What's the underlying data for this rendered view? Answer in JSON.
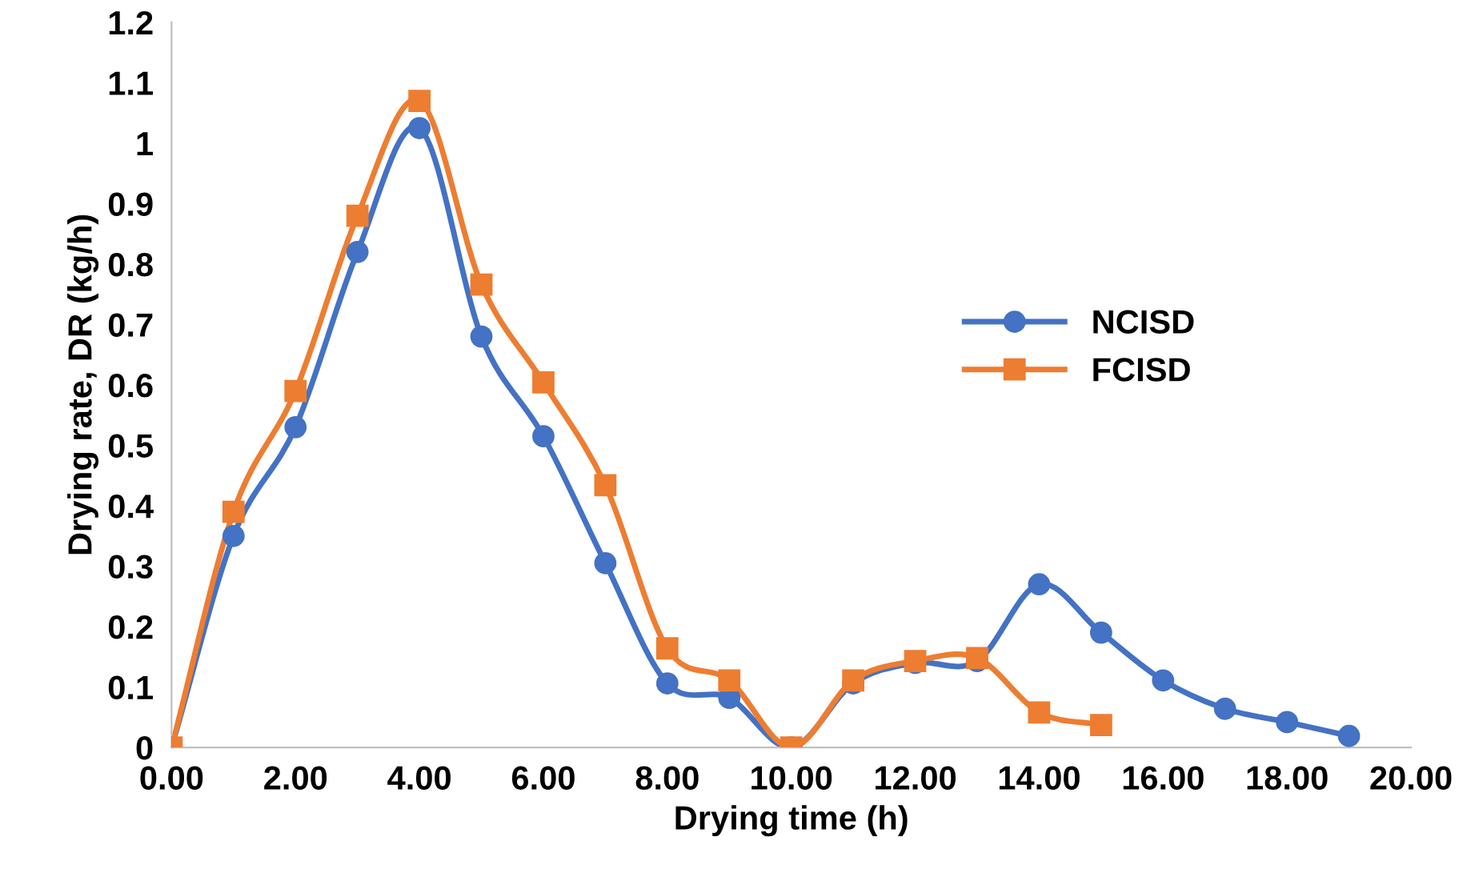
{
  "chart_data": {
    "type": "line",
    "xlabel": "Drying time (h)",
    "ylabel": "Drying rate, DR (kg/h)",
    "xlim": [
      0,
      20
    ],
    "xticks": [
      {
        "value": 0,
        "label": "0.00"
      },
      {
        "value": 2,
        "label": "2.00"
      },
      {
        "value": 4,
        "label": "4.00"
      },
      {
        "value": 6,
        "label": "6.00"
      },
      {
        "value": 8,
        "label": "8.00"
      },
      {
        "value": 10,
        "label": "10.00"
      },
      {
        "value": 12,
        "label": "12.00"
      },
      {
        "value": 14,
        "label": "14.00"
      },
      {
        "value": 16,
        "label": "16.00"
      },
      {
        "value": 18,
        "label": "18.00"
      },
      {
        "value": 20,
        "label": "20.00"
      }
    ],
    "ylim": [
      0,
      1.2
    ],
    "yticks": [
      0,
      0.1,
      0.2,
      0.3,
      0.4,
      0.5,
      0.6,
      0.7,
      0.8,
      0.9,
      1,
      1.1,
      1.2
    ],
    "grid": false,
    "legend": "right",
    "line_style": "solid",
    "series": [
      {
        "name": "NCISD",
        "color": "#4472c4",
        "marker": "circle",
        "x": [
          0,
          1,
          2,
          3,
          4,
          5,
          6,
          7,
          8,
          9,
          10,
          11,
          12,
          13,
          14,
          15,
          16,
          17,
          18,
          19
        ],
        "values": [
          0,
          0.35,
          0.53,
          0.82,
          1.025,
          0.68,
          0.515,
          0.305,
          0.106,
          0.082,
          0,
          0.106,
          0.14,
          0.143,
          0.27,
          0.19,
          0.111,
          0.064,
          0.042,
          0.019
        ]
      },
      {
        "name": "FCISD",
        "color": "#ed7d31",
        "marker": "square",
        "x": [
          0,
          1,
          2,
          3,
          4,
          5,
          6,
          7,
          8,
          9,
          10,
          11,
          12,
          13,
          14,
          15
        ],
        "values": [
          0,
          0.39,
          0.59,
          0.88,
          1.07,
          0.766,
          0.604,
          0.434,
          0.164,
          0.111,
          0,
          0.111,
          0.143,
          0.148,
          0.058,
          0.037
        ]
      }
    ]
  }
}
